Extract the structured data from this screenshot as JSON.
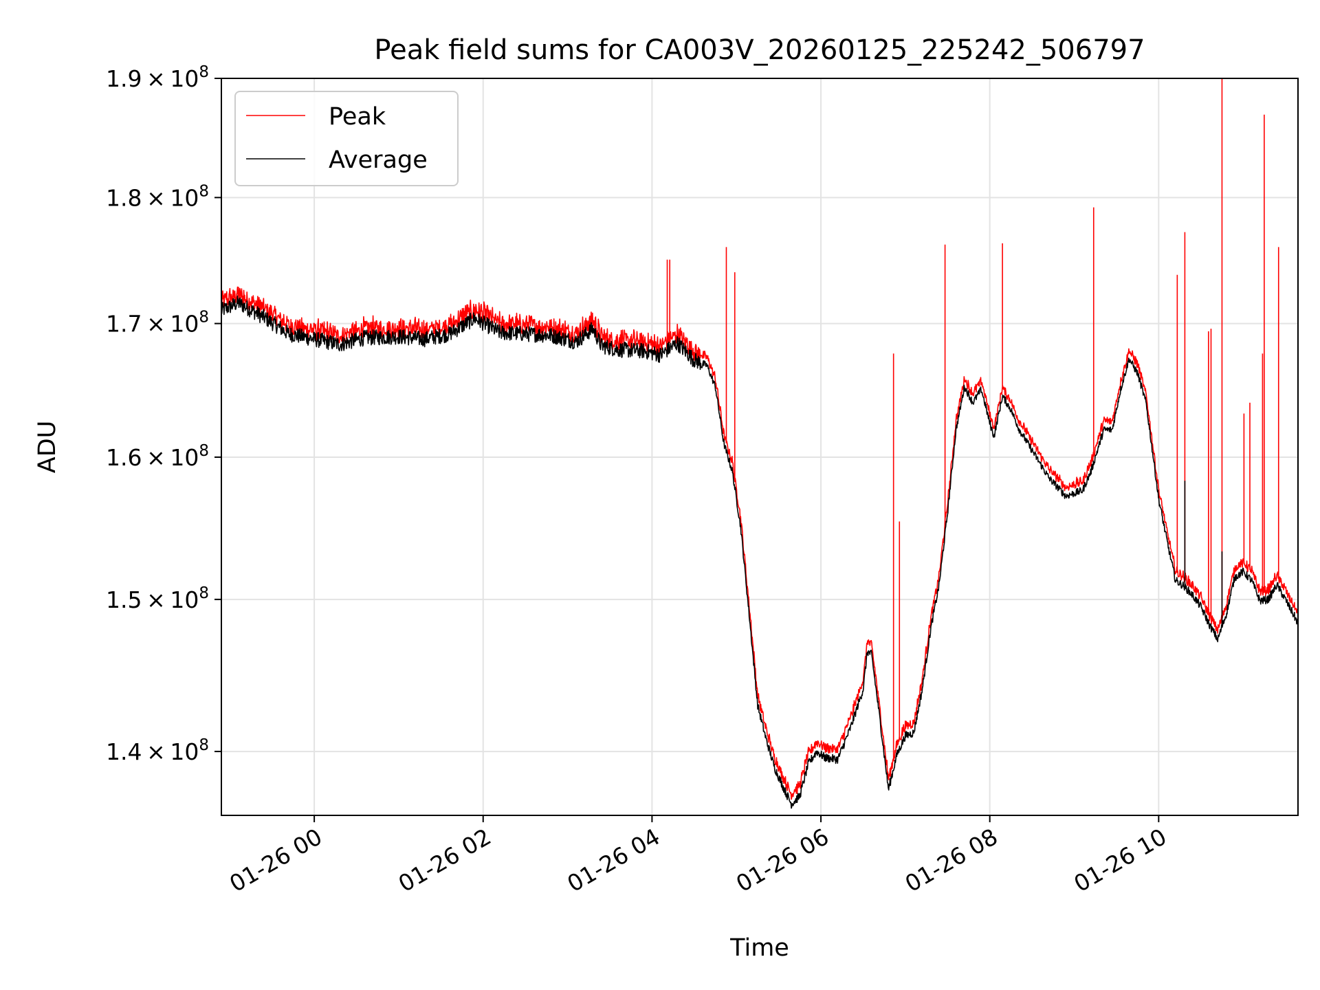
{
  "chart_data": {
    "type": "line",
    "title": "Peak field sums for CA003V_20260125_225242_506797",
    "xlabel": "Time",
    "ylabel": "ADU",
    "x_unit": "hours since 2026-01-26 00:00 (negative = 2026-01-25)",
    "xlim": [
      -1.1,
      11.65
    ],
    "ylim": [
      136000000,
      190000000
    ],
    "y_scale": "log",
    "grid": true,
    "legend_position": "top-left",
    "x_ticks": [
      {
        "value": 0,
        "label": "01-26 00"
      },
      {
        "value": 2,
        "label": "01-26 02"
      },
      {
        "value": 4,
        "label": "01-26 04"
      },
      {
        "value": 6,
        "label": "01-26 06"
      },
      {
        "value": 8,
        "label": "01-26 08"
      },
      {
        "value": 10,
        "label": "01-26 10"
      }
    ],
    "y_ticks": [
      {
        "value": 140000000,
        "mantissa": "1.4",
        "exponent": "8"
      },
      {
        "value": 150000000,
        "mantissa": "1.5",
        "exponent": "8"
      },
      {
        "value": 160000000,
        "mantissa": "1.6",
        "exponent": "8"
      },
      {
        "value": 170000000,
        "mantissa": "1.7",
        "exponent": "8"
      },
      {
        "value": 180000000,
        "mantissa": "1.8",
        "exponent": "8"
      },
      {
        "value": 190000000,
        "mantissa": "1.9",
        "exponent": "8"
      }
    ],
    "series": [
      {
        "name": "Peak",
        "color": "#ff0000",
        "offset": 600000,
        "noise": 700000,
        "spikes": [
          {
            "x": 4.18,
            "y": 175000000
          },
          {
            "x": 4.21,
            "y": 175000000
          },
          {
            "x": 4.88,
            "y": 176000000
          },
          {
            "x": 4.98,
            "y": 174000000
          },
          {
            "x": 6.86,
            "y": 167700000
          },
          {
            "x": 6.93,
            "y": 155400000
          },
          {
            "x": 7.47,
            "y": 176200000
          },
          {
            "x": 8.15,
            "y": 176300000
          },
          {
            "x": 9.23,
            "y": 179200000
          },
          {
            "x": 10.22,
            "y": 173800000
          },
          {
            "x": 10.31,
            "y": 177200000
          },
          {
            "x": 10.59,
            "y": 169400000
          },
          {
            "x": 10.62,
            "y": 169600000
          },
          {
            "x": 10.75,
            "y": 190000000
          },
          {
            "x": 11.01,
            "y": 163200000
          },
          {
            "x": 11.08,
            "y": 164000000
          },
          {
            "x": 11.23,
            "y": 167700000
          },
          {
            "x": 11.25,
            "y": 186900000
          },
          {
            "x": 11.42,
            "y": 176000000
          }
        ]
      },
      {
        "name": "Average",
        "color": "#000000",
        "offset": 0,
        "noise": 600000,
        "spikes": [
          {
            "x": 10.31,
            "y": 158300000
          },
          {
            "x": 10.75,
            "y": 153300000
          }
        ]
      }
    ],
    "baseline": {
      "x": [
        -1.1,
        -0.9,
        -0.6,
        -0.3,
        0.0,
        0.3,
        0.6,
        1.0,
        1.3,
        1.6,
        1.9,
        2.2,
        2.5,
        2.8,
        3.1,
        3.3,
        3.4,
        3.6,
        3.9,
        4.1,
        4.3,
        4.5,
        4.65,
        4.75,
        4.85,
        4.95,
        5.05,
        5.15,
        5.25,
        5.35,
        5.45,
        5.55,
        5.65,
        5.75,
        5.85,
        5.95,
        6.05,
        6.2,
        6.35,
        6.5,
        6.55,
        6.6,
        6.7,
        6.8,
        6.9,
        7.0,
        7.1,
        7.2,
        7.3,
        7.4,
        7.5,
        7.6,
        7.7,
        7.8,
        7.9,
        8.0,
        8.05,
        8.15,
        8.25,
        8.35,
        8.5,
        8.7,
        8.9,
        9.1,
        9.2,
        9.35,
        9.45,
        9.55,
        9.65,
        9.75,
        9.85,
        10.0,
        10.1,
        10.2,
        10.3,
        10.4,
        10.5,
        10.6,
        10.7,
        10.8,
        10.9,
        11.0,
        11.1,
        11.2,
        11.3,
        11.4,
        11.5,
        11.65
      ],
      "y": [
        171000000,
        171600000,
        170500000,
        169200000,
        168800000,
        168400000,
        168900000,
        169000000,
        168800000,
        169200000,
        170400000,
        169300000,
        169200000,
        169100000,
        168600000,
        169600000,
        168300000,
        168000000,
        167900000,
        167600000,
        168500000,
        167200000,
        166800000,
        165200000,
        161000000,
        159000000,
        155000000,
        149000000,
        143000000,
        140800000,
        139000000,
        137800000,
        136700000,
        137200000,
        139200000,
        140000000,
        139600000,
        139500000,
        141500000,
        144000000,
        146500000,
        146300000,
        142000000,
        137600000,
        139800000,
        141000000,
        141200000,
        144000000,
        148000000,
        151000000,
        156000000,
        162000000,
        165200000,
        164000000,
        165000000,
        162500000,
        161500000,
        164500000,
        163500000,
        162000000,
        160500000,
        158500000,
        157200000,
        157600000,
        159000000,
        162000000,
        162000000,
        165000000,
        167300000,
        166200000,
        164000000,
        157000000,
        154000000,
        151300000,
        150900000,
        150300000,
        149500000,
        148300000,
        147300000,
        149000000,
        151500000,
        151900000,
        151300000,
        149900000,
        150000000,
        151000000,
        150000000,
        148400000
      ]
    }
  }
}
